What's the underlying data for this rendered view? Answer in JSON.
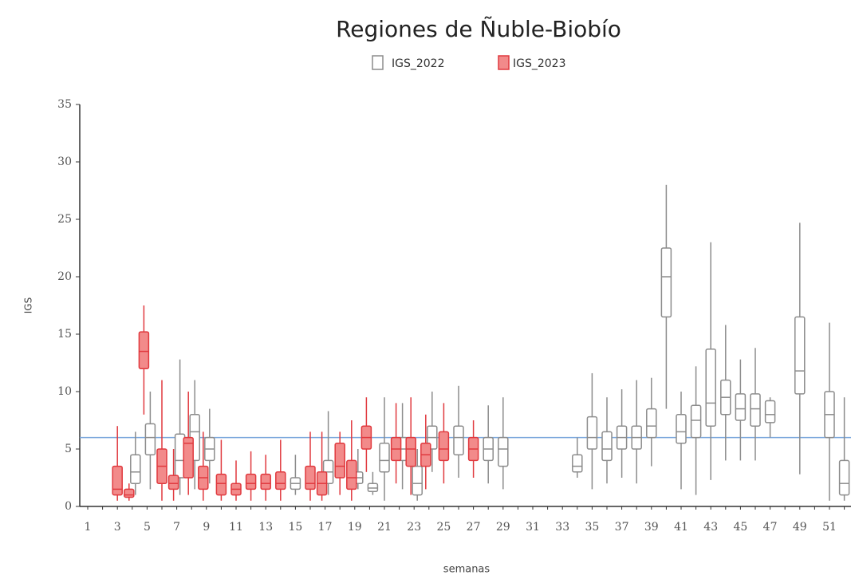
{
  "chart_data": {
    "type": "box",
    "title": "Regiones de Ñuble-Biobío",
    "x_label": "semanas",
    "y_label": "IGS",
    "categories": [
      "1",
      null,
      "3",
      null,
      "5",
      null,
      "7",
      null,
      "9",
      null,
      "11",
      null,
      "13",
      null,
      "15",
      null,
      "17",
      null,
      "19",
      null,
      "21",
      null,
      "23",
      null,
      "25",
      null,
      "27",
      null,
      "29",
      null,
      "31",
      null,
      "33",
      null,
      "35",
      null,
      "37",
      null,
      "39",
      null,
      "41",
      null,
      "43",
      null,
      "45",
      null,
      "47",
      null,
      "49",
      null,
      "51",
      null
    ],
    "ylim": [
      0,
      35
    ],
    "yticks": [
      0,
      5,
      10,
      15,
      20,
      25,
      30,
      35
    ],
    "reference_line": 6,
    "reference_color": "#7aa6dc",
    "series": [
      {
        "name": "IGS_2022",
        "color": "#ffffff",
        "edge": "#8c8c8c",
        "low": [
          null,
          null,
          null,
          1,
          1.5,
          null,
          1,
          1.5,
          2,
          null,
          null,
          null,
          null,
          null,
          1,
          null,
          1,
          null,
          1.5,
          1,
          0.5,
          1.5,
          0.5,
          3,
          null,
          2.5,
          null,
          2,
          1.5,
          null,
          null,
          null,
          null,
          2.5,
          1.5,
          2,
          2.5,
          2,
          3.5,
          8.5,
          1.5,
          1,
          2.3,
          4,
          4,
          4,
          6,
          null,
          2.8,
          null,
          0.5,
          0.5
        ],
        "q1": [
          null,
          null,
          null,
          2,
          4.5,
          null,
          2.5,
          4,
          4,
          null,
          null,
          null,
          null,
          null,
          1.5,
          null,
          2,
          null,
          2,
          1.3,
          3,
          4,
          1,
          5,
          null,
          4.5,
          null,
          4,
          3.5,
          null,
          null,
          null,
          null,
          3,
          5,
          4,
          5,
          5,
          6,
          16.5,
          5.5,
          6,
          7,
          8,
          7.5,
          7,
          7.3,
          null,
          9.8,
          null,
          6,
          1
        ],
        "median": [
          null,
          null,
          null,
          3,
          6,
          null,
          4,
          6.5,
          5,
          null,
          null,
          null,
          null,
          null,
          2,
          null,
          3,
          null,
          2.5,
          1.6,
          4,
          5,
          2,
          6,
          null,
          6,
          null,
          5,
          5,
          null,
          null,
          null,
          null,
          3.5,
          6,
          5,
          6,
          6,
          7,
          20,
          6.5,
          7.5,
          9,
          9.5,
          8.5,
          8.5,
          8,
          null,
          11.8,
          null,
          8,
          2
        ],
        "q3": [
          null,
          null,
          null,
          4.5,
          7.2,
          null,
          6.3,
          8,
          6,
          null,
          null,
          null,
          null,
          null,
          2.5,
          null,
          4,
          null,
          3,
          2,
          5.5,
          6,
          3.5,
          7,
          null,
          7,
          null,
          6,
          6,
          null,
          null,
          null,
          null,
          4.5,
          7.8,
          6.5,
          7,
          7,
          8.5,
          22.5,
          8,
          8.8,
          13.7,
          11,
          9.8,
          9.8,
          9.2,
          null,
          16.5,
          null,
          10,
          4
        ],
        "high": [
          null,
          null,
          null,
          6.5,
          10,
          null,
          12.8,
          11,
          8.5,
          null,
          null,
          null,
          null,
          null,
          4.5,
          null,
          8.3,
          null,
          5,
          3,
          9.5,
          9,
          5,
          10,
          null,
          10.5,
          null,
          8.8,
          9.5,
          null,
          null,
          null,
          null,
          6,
          11.6,
          9.5,
          10.2,
          11,
          11.2,
          28,
          10,
          12.2,
          23,
          15.8,
          12.8,
          13.8,
          9.5,
          null,
          24.7,
          null,
          16,
          9.5
        ]
      },
      {
        "name": "IGS_2023",
        "color": "#f28a8a",
        "edge": "#e0393e",
        "low": [
          null,
          null,
          0.5,
          0.5,
          8,
          0.5,
          0.5,
          1,
          0.5,
          0.5,
          0.5,
          0.5,
          0.5,
          0.5,
          null,
          0.5,
          0.5,
          1,
          0.5,
          3,
          null,
          2,
          1,
          1.5,
          2,
          null,
          2.5,
          null,
          null,
          null,
          null,
          null,
          null,
          null,
          null,
          null,
          null,
          null,
          null,
          null,
          null,
          null,
          null,
          null,
          null,
          null,
          null,
          null,
          null,
          null,
          null,
          null
        ],
        "q1": [
          null,
          null,
          1,
          0.8,
          12,
          2,
          1.5,
          2.5,
          1.5,
          1,
          1,
          1.5,
          1.5,
          1.5,
          null,
          1.5,
          1,
          2.5,
          1.5,
          5,
          null,
          4,
          3.5,
          3.5,
          4,
          null,
          4,
          null,
          null,
          null,
          null,
          null,
          null,
          null,
          null,
          null,
          null,
          null,
          null,
          null,
          null,
          null,
          null,
          null,
          null,
          null,
          null,
          null,
          null,
          null,
          null,
          null
        ],
        "median": [
          null,
          null,
          1.5,
          1,
          13.5,
          3.5,
          2,
          5.5,
          2.5,
          2,
          1.5,
          2,
          2,
          2,
          null,
          2,
          2,
          3.5,
          2.5,
          6,
          null,
          5,
          5,
          4.5,
          5,
          null,
          5,
          null,
          null,
          null,
          null,
          null,
          null,
          null,
          null,
          null,
          null,
          null,
          null,
          null,
          null,
          null,
          null,
          null,
          null,
          null,
          null,
          null,
          null,
          null,
          null,
          null
        ],
        "q3": [
          null,
          null,
          3.5,
          1.5,
          15.2,
          5,
          2.7,
          6,
          3.5,
          2.8,
          2,
          2.8,
          2.8,
          3,
          null,
          3.5,
          3,
          5.5,
          4,
          7,
          null,
          6,
          6,
          5.5,
          6.5,
          null,
          6,
          null,
          null,
          null,
          null,
          null,
          null,
          null,
          null,
          null,
          null,
          null,
          null,
          null,
          null,
          null,
          null,
          null,
          null,
          null,
          null,
          null,
          null,
          null,
          null,
          null
        ],
        "high": [
          null,
          null,
          7,
          2,
          17.5,
          11,
          5,
          10,
          6.5,
          5.8,
          4,
          4.8,
          4.5,
          5.8,
          null,
          6.5,
          6.5,
          6.5,
          7.5,
          9.5,
          null,
          9,
          9.5,
          8,
          9,
          null,
          7.5,
          null,
          null,
          null,
          null,
          null,
          null,
          null,
          null,
          null,
          null,
          null,
          null,
          null,
          null,
          null,
          null,
          null,
          null,
          null,
          null,
          null,
          null,
          null,
          null,
          null
        ]
      }
    ]
  }
}
